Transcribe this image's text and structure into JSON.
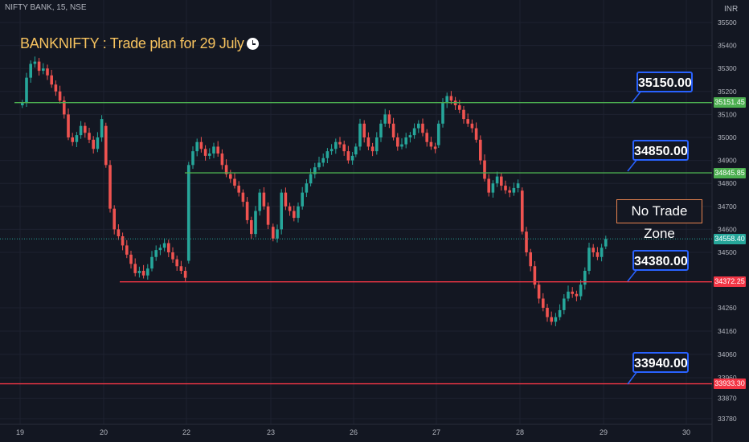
{
  "header": {
    "symbol": "NIFTY BANK, 15, NSE",
    "currency": "INR"
  },
  "title": "BANKNIFTY : Trade plan for 29 July",
  "no_trade_zone": "No Trade Zone",
  "colors": {
    "background": "#131722",
    "up": "#26a69a",
    "down": "#ef5350",
    "green_line": "#4caf50",
    "red_line": "#f23645",
    "callout_border": "#2962ff",
    "current": "#26a69a"
  },
  "chart_data": {
    "type": "candlestick",
    "title": "BANKNIFTY : Trade plan for 29 July",
    "x_ticks": [
      "19",
      "20",
      "22",
      "23",
      "26",
      "27",
      "28",
      "29",
      "30"
    ],
    "y_ticks": [
      35500,
      35400,
      35300,
      35200,
      35100,
      35000,
      34900,
      34800,
      34700,
      34600,
      34500,
      34260,
      34160,
      34060,
      33960,
      33870,
      33780
    ],
    "ylim": [
      33760,
      35600
    ],
    "horizontal_levels": [
      {
        "label": "35150.00",
        "price_tag": "35151.45",
        "value": 35151.45,
        "color": "green",
        "start_session": "19"
      },
      {
        "label": "34850.00",
        "price_tag": "34845.85",
        "value": 34845.85,
        "color": "green",
        "start_session": "22"
      },
      {
        "label": "34380.00",
        "price_tag": "34372.25",
        "value": 34372.25,
        "color": "red",
        "start_session": "20"
      },
      {
        "label": "33940.00",
        "price_tag": "33933.30",
        "value": 33933.3,
        "color": "red",
        "start_session": "19"
      }
    ],
    "last_price": {
      "label": "34558.40",
      "value": 34558.4
    },
    "sessions": [
      {
        "date": "19",
        "close_path": [
          35150,
          35260,
          35320,
          35330,
          35290,
          35300,
          35270,
          35230,
          35200,
          35160,
          35100,
          35000,
          34980,
          35010,
          35050,
          35020,
          34990,
          34950,
          35000,
          35080
        ]
      },
      {
        "date": "20",
        "close_path": [
          34880,
          34690,
          34600,
          34570,
          34530,
          34490,
          34450,
          34410,
          34420,
          34400,
          34430,
          34480,
          34510,
          34520,
          34540,
          34500,
          34470,
          34440,
          34420,
          34390
        ]
      },
      {
        "date": "22",
        "close_path": [
          34880,
          34940,
          34980,
          34950,
          34920,
          34930,
          34960,
          34930,
          34880,
          34840,
          34820,
          34790,
          34760,
          34720,
          34640,
          34580,
          34680,
          34760,
          34700,
          34620
        ]
      },
      {
        "date": "23",
        "close_path": [
          34560,
          34600,
          34760,
          34700,
          34680,
          34650,
          34700,
          34760,
          34800,
          34840,
          34870,
          34890,
          34910,
          34940,
          34950,
          34980,
          34970,
          34940,
          34900,
          34920
        ]
      },
      {
        "date": "26",
        "close_path": [
          34960,
          35060,
          35000,
          34960,
          34940,
          35000,
          35060,
          35100,
          35060,
          35000,
          34960,
          34970,
          35000,
          35010,
          35040,
          35060,
          35020,
          34980,
          34960,
          34950
        ]
      },
      {
        "date": "27",
        "close_path": [
          35060,
          35150,
          35180,
          35160,
          35140,
          35120,
          35080,
          35060,
          35040,
          34990,
          34900,
          34820,
          34760,
          34800,
          34830,
          34790,
          34770,
          34760,
          34780,
          34800
        ]
      },
      {
        "date": "28",
        "close_path": [
          34590,
          34500,
          34440,
          34360,
          34300,
          34260,
          34220,
          34200,
          34220,
          34250,
          34300,
          34330,
          34320,
          34310,
          34360,
          34420,
          34520,
          34500,
          34480,
          34520
        ]
      },
      {
        "date": "29",
        "close_path": [
          34558.4
        ]
      }
    ]
  }
}
